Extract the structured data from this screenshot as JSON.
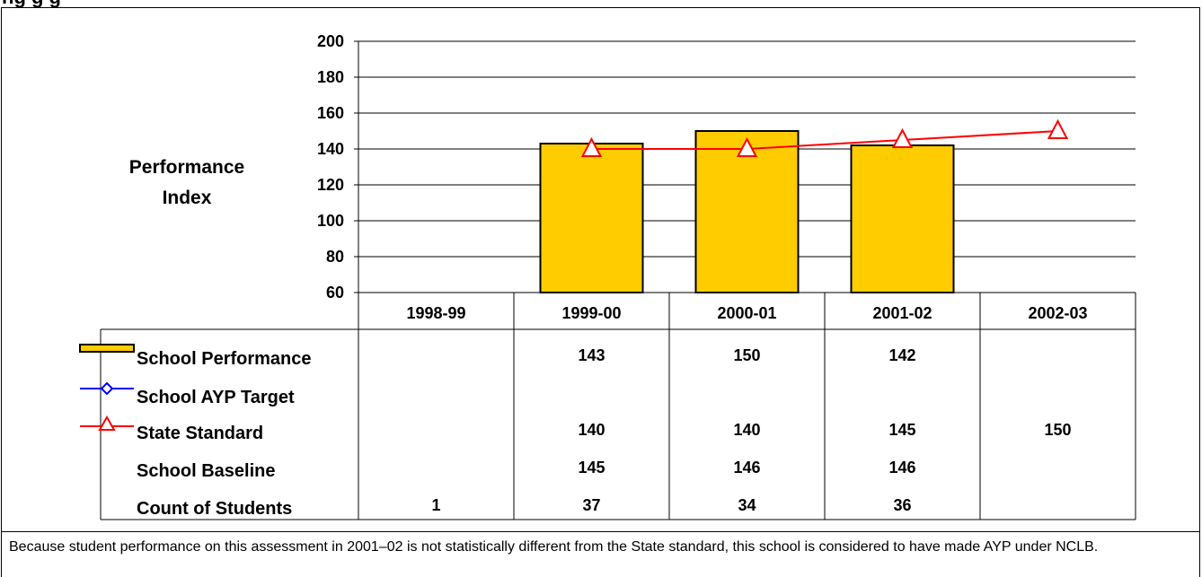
{
  "page": {
    "partial_title": "ng     g   g",
    "note": "Because student performance on this assessment in 2001–02 is not statistically different from the State standard, this school is considered to have made AYP under NCLB."
  },
  "chart_data": {
    "type": "bar",
    "title": "",
    "ylabel": "Performance Index",
    "ylabel_lines": [
      "Performance",
      "Index"
    ],
    "ylim": [
      60,
      200
    ],
    "yticks": [
      60,
      80,
      100,
      120,
      140,
      160,
      180,
      200
    ],
    "grid": true,
    "categories": [
      "1998-99",
      "1999-00",
      "2000-01",
      "2001-02",
      "2002-03"
    ],
    "series": [
      {
        "name": "School Performance",
        "kind": "bar",
        "color": "#FFCC00",
        "values": [
          null,
          143,
          150,
          142,
          null
        ]
      },
      {
        "name": "School AYP Target",
        "kind": "line",
        "marker": "diamond",
        "color": "#0000FF",
        "values": [
          null,
          null,
          null,
          null,
          null
        ]
      },
      {
        "name": "State Standard",
        "kind": "line",
        "marker": "triangle",
        "color": "#FF0000",
        "values": [
          null,
          140,
          140,
          145,
          150
        ]
      }
    ],
    "table_rows": [
      {
        "label": "School Performance",
        "legend": "bar",
        "values": [
          "",
          "143",
          "150",
          "142",
          ""
        ]
      },
      {
        "label": "School AYP Target",
        "legend": "diamond-line",
        "values": [
          "",
          "",
          "",
          "",
          ""
        ]
      },
      {
        "label": "State Standard",
        "legend": "triangle-line",
        "values": [
          "",
          "140",
          "140",
          "145",
          "150"
        ]
      },
      {
        "label": "School Baseline",
        "legend": "none",
        "values": [
          "",
          "145",
          "146",
          "146",
          ""
        ]
      },
      {
        "label": "Count of Students",
        "legend": "none",
        "values": [
          "1",
          "37",
          "34",
          "36",
          ""
        ]
      }
    ]
  }
}
